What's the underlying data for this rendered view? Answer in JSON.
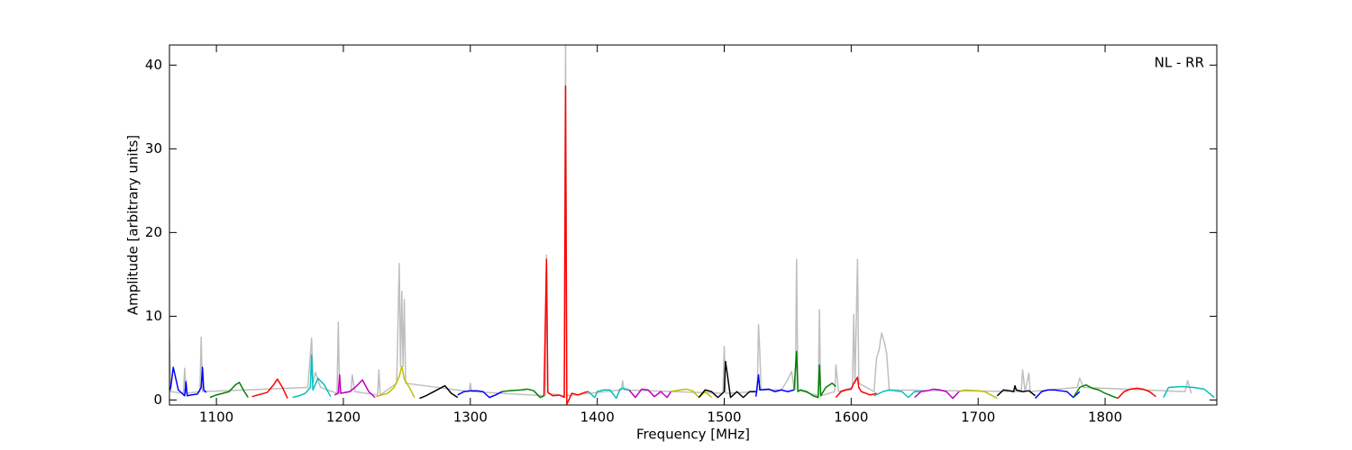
{
  "chart_data": {
    "type": "line",
    "xlabel": "Frequency [MHz]",
    "ylabel": "Amplitude [arbitrary units]",
    "annotation": "NL - RR",
    "xlim": [
      1063,
      1888
    ],
    "ylim": [
      -0.6,
      42.4
    ],
    "xticks": [
      1100,
      1200,
      1300,
      1400,
      1500,
      1600,
      1700,
      1800
    ],
    "yticks": [
      0,
      10,
      20,
      30,
      40
    ],
    "grid": false,
    "series": [
      {
        "color": "#bfbfbf",
        "x": [
          1062,
          1063,
          1064,
          1074,
          1075,
          1076,
          1087,
          1088,
          1089,
          1172,
          1175,
          1176,
          1178,
          1182,
          1195,
          1196,
          1197,
          1206,
          1207,
          1209,
          1227,
          1228,
          1229,
          1242,
          1244,
          1245,
          1246,
          1247,
          1248,
          1249,
          1299,
          1300,
          1301,
          1359,
          1360,
          1361,
          1374,
          1375,
          1376,
          1419,
          1420,
          1421,
          1499,
          1500,
          1501,
          1526,
          1527,
          1528,
          1529,
          1545,
          1550,
          1553,
          1555,
          1556,
          1557,
          1558,
          1574,
          1575,
          1576,
          1587,
          1588,
          1590,
          1601,
          1602,
          1603,
          1605,
          1606,
          1618,
          1620,
          1622,
          1624,
          1626,
          1628,
          1630,
          1734,
          1735,
          1737,
          1740,
          1741,
          1778,
          1780,
          1783,
          1863,
          1865,
          1868
        ],
        "values": [
          1,
          7.5,
          1,
          0.8,
          3.8,
          0.8,
          1,
          7.5,
          1,
          1.5,
          7.4,
          2,
          3.3,
          1.5,
          0.8,
          9.3,
          0.8,
          1,
          3,
          1,
          0.6,
          3.6,
          0.6,
          2,
          16.3,
          4,
          13,
          4,
          12,
          2,
          1,
          2,
          1,
          0.5,
          17.3,
          0.8,
          0.5,
          42.4,
          0.5,
          1.2,
          2.3,
          1.2,
          0.8,
          6.4,
          0.8,
          1,
          9,
          5.8,
          1.2,
          1.2,
          2.4,
          3.4,
          1.5,
          1.2,
          16.8,
          1.2,
          0.5,
          10.8,
          0.5,
          1,
          4.2,
          1,
          1.5,
          10.2,
          2,
          16.8,
          2,
          1,
          5,
          6,
          8,
          7,
          5.5,
          1.2,
          1,
          3.6,
          1,
          3.2,
          1,
          1.5,
          2.6,
          1.5,
          1,
          2.3,
          0.8
        ]
      },
      {
        "color": "#0000ff",
        "x": [
          1062,
          1064,
          1066,
          1070,
          1075,
          1076,
          1077,
          1080,
          1085,
          1088,
          1089,
          1090,
          1092
        ],
        "values": [
          0.8,
          1.5,
          3.9,
          1.2,
          0.5,
          2.2,
          0.5,
          0.6,
          0.7,
          1.5,
          3.9,
          1.2,
          0.9
        ]
      },
      {
        "color": "#008000",
        "x": [
          1095,
          1100,
          1105,
          1110,
          1115,
          1118,
          1122,
          1125
        ],
        "values": [
          0.3,
          0.6,
          0.8,
          1.0,
          1.8,
          2.1,
          1.0,
          0.3
        ]
      },
      {
        "color": "#ff0000",
        "x": [
          1128,
          1135,
          1140,
          1145,
          1148,
          1152,
          1156
        ],
        "values": [
          0.4,
          0.7,
          0.9,
          1.8,
          2.5,
          1.5,
          0.2
        ]
      },
      {
        "color": "#00bfbf",
        "x": [
          1160,
          1165,
          1170,
          1174,
          1175,
          1176,
          1180,
          1185,
          1190
        ],
        "values": [
          0.3,
          0.5,
          0.8,
          1.5,
          5.4,
          1.2,
          2.6,
          1.8,
          0.4
        ]
      },
      {
        "color": "#bf00bf",
        "x": [
          1193,
          1196,
          1197,
          1198,
          1205,
          1210,
          1215,
          1220,
          1225
        ],
        "values": [
          0.6,
          0.8,
          3.0,
          0.8,
          1.0,
          1.6,
          2.4,
          1.0,
          0.3
        ]
      },
      {
        "color": "#bfbf00",
        "x": [
          1226,
          1230,
          1235,
          1240,
          1244,
          1246,
          1248,
          1252,
          1256
        ],
        "values": [
          0.4,
          0.6,
          0.8,
          1.5,
          2.8,
          4.0,
          2.5,
          1.5,
          0.3
        ]
      },
      {
        "color": "#000000",
        "x": [
          1260,
          1265,
          1270,
          1275,
          1280,
          1285,
          1290
        ],
        "values": [
          0.2,
          0.5,
          0.9,
          1.3,
          1.7,
          0.8,
          0.3
        ]
      },
      {
        "color": "#0000ff",
        "x": [
          1290,
          1295,
          1300,
          1305,
          1310,
          1315,
          1320,
          1325
        ],
        "values": [
          0.6,
          1.0,
          1.1,
          1.1,
          1.0,
          0.3,
          0.6,
          1.0
        ]
      },
      {
        "color": "#008000",
        "x": [
          1325,
          1330,
          1340,
          1345,
          1350,
          1355,
          1358
        ],
        "values": [
          1.0,
          1.1,
          1.2,
          1.3,
          1.1,
          0.3,
          0.5
        ]
      },
      {
        "color": "#ff0000",
        "x": [
          1358,
          1360,
          1361,
          1362,
          1365,
          1370,
          1374,
          1375,
          1376,
          1380,
          1385,
          1390,
          1393
        ],
        "values": [
          0.5,
          16.8,
          1.0,
          0.8,
          0.5,
          0.6,
          0.3,
          37.5,
          -0.5,
          0.8,
          0.6,
          0.9,
          1.0
        ]
      },
      {
        "color": "#00bfbf",
        "x": [
          1393,
          1398,
          1400,
          1405,
          1410,
          1415,
          1418,
          1420,
          1425
        ],
        "values": [
          1.0,
          0.3,
          1.0,
          1.2,
          1.2,
          0.2,
          1.3,
          1.4,
          1.2
        ]
      },
      {
        "color": "#bf00bf",
        "x": [
          1425,
          1430,
          1435,
          1440,
          1445,
          1450,
          1455,
          1458
        ],
        "values": [
          1.2,
          0.3,
          1.3,
          1.2,
          0.4,
          1.0,
          0.3,
          1.0
        ]
      },
      {
        "color": "#bfbf00",
        "x": [
          1458,
          1465,
          1470,
          1475,
          1480,
          1485,
          1490
        ],
        "values": [
          1.0,
          1.2,
          1.3,
          1.1,
          0.3,
          1.0,
          0.3
        ]
      },
      {
        "color": "#000000",
        "x": [
          1480,
          1485,
          1490,
          1495,
          1500,
          1501,
          1505,
          1510,
          1515,
          1520,
          1525
        ],
        "values": [
          0.3,
          1.2,
          1.0,
          0.3,
          1.0,
          4.6,
          0.3,
          1.0,
          0.3,
          1.0,
          1.0
        ]
      },
      {
        "color": "#0000ff",
        "x": [
          1525,
          1527,
          1528,
          1535,
          1540,
          1545,
          1550,
          1555
        ],
        "values": [
          0.4,
          3.0,
          1.2,
          1.3,
          1.0,
          1.2,
          1.0,
          1.2
        ]
      },
      {
        "color": "#008000",
        "x": [
          1555,
          1557,
          1558,
          1560,
          1565,
          1570,
          1574,
          1575,
          1576,
          1580,
          1585,
          1588
        ],
        "values": [
          1.2,
          5.8,
          1.0,
          1.2,
          1.0,
          0.5,
          0.3,
          4.2,
          0.5,
          1.5,
          2.0,
          1.6
        ]
      },
      {
        "color": "#ff0000",
        "x": [
          1588,
          1592,
          1596,
          1600,
          1602,
          1603,
          1605,
          1606,
          1608,
          1615,
          1620
        ],
        "values": [
          0.3,
          1.0,
          1.2,
          1.3,
          2.0,
          2.2,
          2.7,
          1.5,
          1.0,
          0.6,
          0.8
        ]
      },
      {
        "color": "#00bfbf",
        "x": [
          1618,
          1625,
          1630,
          1640,
          1645,
          1650,
          1655
        ],
        "values": [
          0.5,
          1.0,
          1.2,
          1.0,
          0.3,
          1.0,
          1.0
        ]
      },
      {
        "color": "#bf00bf",
        "x": [
          1650,
          1655,
          1660,
          1665,
          1670,
          1675,
          1680,
          1685
        ],
        "values": [
          0.3,
          1.0,
          1.1,
          1.3,
          1.2,
          1.0,
          0.2,
          1.0
        ]
      },
      {
        "color": "#bfbf00",
        "x": [
          1685,
          1690,
          1700,
          1705,
          1710,
          1715
        ],
        "values": [
          1.0,
          1.2,
          1.1,
          1.0,
          0.6,
          0.2
        ]
      },
      {
        "color": "#000000",
        "x": [
          1715,
          1720,
          1725,
          1728,
          1729,
          1730,
          1735,
          1740,
          1745
        ],
        "values": [
          0.5,
          1.2,
          1.1,
          1.0,
          1.7,
          1.2,
          1.0,
          1.1,
          0.5
        ]
      },
      {
        "color": "#0000ff",
        "x": [
          1745,
          1750,
          1755,
          1760,
          1765,
          1770,
          1775,
          1780
        ],
        "values": [
          0.2,
          1.0,
          1.2,
          1.2,
          1.1,
          1.0,
          0.3,
          1.0
        ]
      },
      {
        "color": "#008000",
        "x": [
          1775,
          1780,
          1785,
          1790,
          1795,
          1800,
          1805,
          1810
        ],
        "values": [
          0.3,
          1.5,
          1.8,
          1.4,
          1.2,
          0.8,
          0.5,
          0.2
        ]
      },
      {
        "color": "#ff0000",
        "x": [
          1810,
          1815,
          1820,
          1825,
          1830,
          1835,
          1840
        ],
        "values": [
          0.2,
          1.0,
          1.3,
          1.4,
          1.3,
          1.0,
          0.4
        ]
      },
      {
        "color": "#00bfbf",
        "x": [
          1846,
          1850,
          1860,
          1870,
          1878,
          1882,
          1886
        ],
        "values": [
          0.3,
          1.5,
          1.6,
          1.5,
          1.3,
          0.8,
          0.3
        ]
      }
    ]
  }
}
